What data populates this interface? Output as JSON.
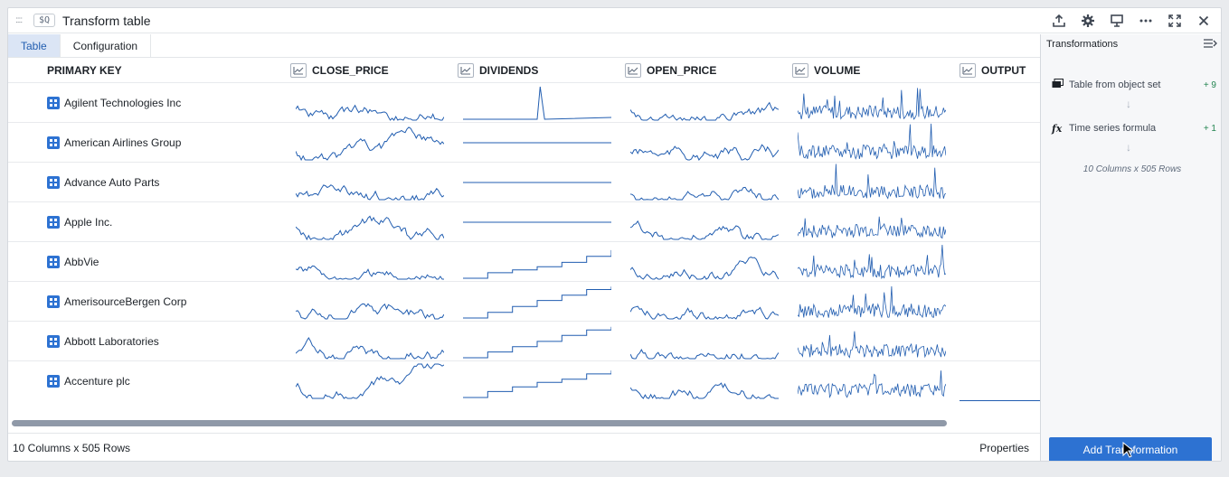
{
  "window": {
    "drag_handle": "::::",
    "badge": "$Q",
    "title": "Transform table"
  },
  "toolbar_icons": [
    "upload-icon",
    "gear-icon",
    "presentation-icon",
    "more-icon",
    "fullscreen-icon",
    "close-icon"
  ],
  "tabs": [
    {
      "label": "Table",
      "active": true
    },
    {
      "label": "Configuration",
      "active": false
    }
  ],
  "table": {
    "primary_key_header": "PRIMARY KEY",
    "columns": [
      "CLOSE_PRICE",
      "DIVIDENDS",
      "OPEN_PRICE",
      "VOLUME",
      "OUTPUT"
    ],
    "rows": [
      "Agilent Technologies Inc",
      "American Airlines Group",
      "Advance Auto Parts",
      "Apple Inc.",
      "AbbVie",
      "AmerisourceBergen Corp",
      "Abbott Laboratories",
      "Accenture plc"
    ]
  },
  "footer": {
    "row_info": "10 Columns x 505 Rows",
    "properties_label": "Properties"
  },
  "panel": {
    "title": "Transformations",
    "steps": [
      {
        "icon": "table-icon",
        "label": "Table from object set",
        "count": "+ 9"
      },
      {
        "icon": "function-icon",
        "label": "Time series formula",
        "count": "+ 1"
      }
    ],
    "summary": "10 Columns x 505 Rows",
    "add_button": "Add Transformation"
  },
  "colors": {
    "accent": "#2d72d2",
    "spark": "#215db0",
    "active_tab_bg": "#dbe5f5"
  }
}
